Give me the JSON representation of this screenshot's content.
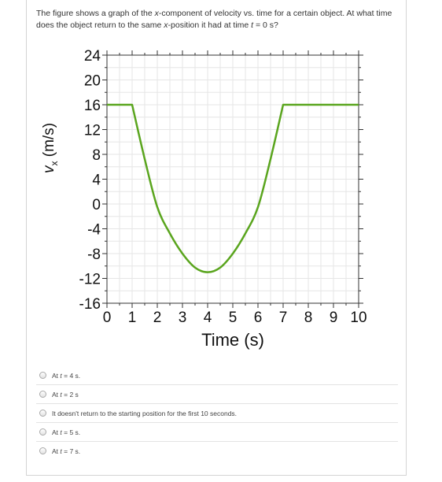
{
  "question": {
    "part1": "The figure shows a graph of the ",
    "part2": "x",
    "part3": "-component of velocity vs. time for a certain object. At what time does the object return to the same ",
    "part4": "x",
    "part5": "-position it had at time ",
    "part6": "t",
    "part7": " = 0 s?"
  },
  "chart_data": {
    "type": "line",
    "xlabel": "Time (s)",
    "ylabel_var": "v",
    "ylabel_sub": "x",
    "ylabel_unit": " (m/s)",
    "xlim": [
      0,
      10
    ],
    "ylim": [
      -16,
      24
    ],
    "xticks": [
      0,
      1,
      2,
      3,
      4,
      5,
      6,
      7,
      8,
      9,
      10
    ],
    "yticks": [
      24,
      20,
      16,
      12,
      8,
      4,
      0,
      -4,
      -8,
      -12,
      -16
    ],
    "grid": true,
    "line_color": "#5aa51e",
    "series": [
      {
        "x": [
          0,
          1,
          1.5,
          2,
          2.5,
          3,
          3.5,
          4,
          4.5,
          5,
          5.5,
          6,
          6.5,
          7,
          10
        ],
        "y": [
          16,
          16,
          7.25,
          -0.5,
          -4.75,
          -8,
          -10.25,
          -11,
          -10.25,
          -8,
          -4.75,
          -0.5,
          7.25,
          16,
          16
        ]
      }
    ]
  },
  "options": [
    {
      "prefix": "At ",
      "var": "t",
      "rest": " = 4 s."
    },
    {
      "prefix": "At ",
      "var": "t",
      "rest": " = 2 s"
    },
    {
      "prefix": "It doesn't return to the starting position for the first 10 seconds.",
      "var": "",
      "rest": ""
    },
    {
      "prefix": "At ",
      "var": "t",
      "rest": " = 5 s."
    },
    {
      "prefix": "At ",
      "var": "t",
      "rest": " = 7 s."
    }
  ]
}
